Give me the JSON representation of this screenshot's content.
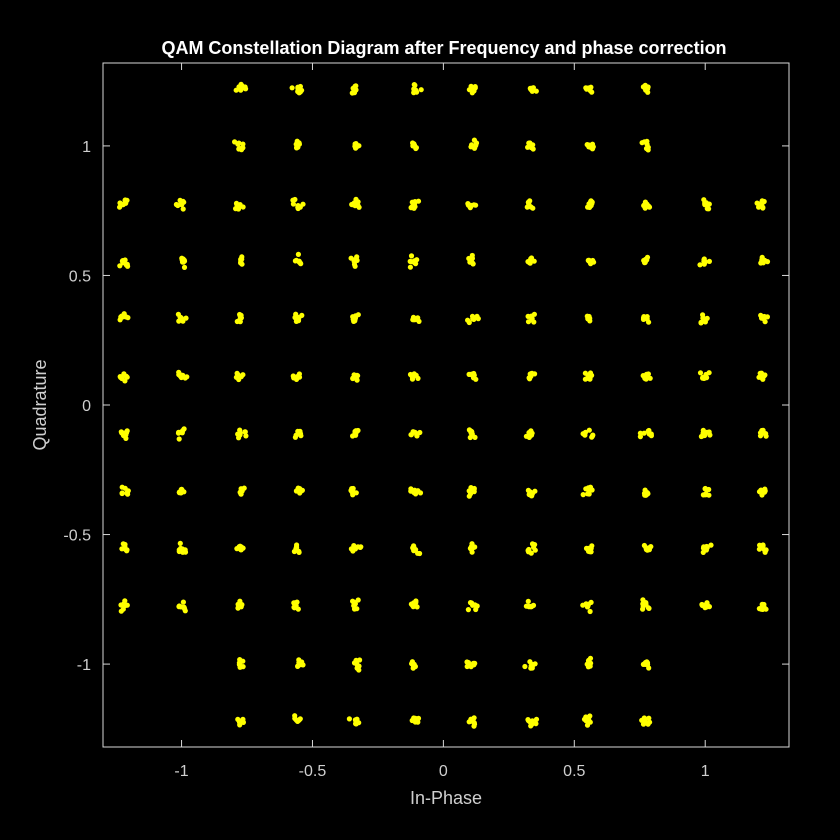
{
  "chart_data": {
    "type": "scatter",
    "title": "QAM Constellation Diagram after Frequency and phase correction",
    "xlabel": "In-Phase",
    "ylabel": "Quadrature",
    "xlim": [
      -1.3,
      1.32
    ],
    "ylim": [
      -1.32,
      1.32
    ],
    "xticks": [
      -1,
      -0.5,
      0,
      0.5,
      1
    ],
    "xtick_labels": [
      "-1",
      "-0.5",
      "0",
      "0.5",
      "1"
    ],
    "yticks": [
      -1,
      -0.5,
      0,
      0.5,
      1
    ],
    "ytick_labels": [
      "-1",
      "-0.5",
      "0",
      "0.5",
      "1"
    ],
    "grid": false,
    "legend": "none",
    "levels": [
      -1.22,
      -1.0,
      -0.775,
      -0.555,
      -0.335,
      -0.11,
      0.11,
      0.335,
      0.555,
      0.775,
      1.0,
      1.22
    ],
    "excluded_corners": [
      [
        -1.22,
        1.22
      ],
      [
        -1.0,
        1.22
      ],
      [
        1.0,
        1.22
      ],
      [
        1.22,
        1.22
      ],
      [
        -1.22,
        1.0
      ],
      [
        -1.0,
        1.0
      ],
      [
        1.0,
        1.0
      ],
      [
        1.22,
        1.0
      ],
      [
        -1.22,
        -1.0
      ],
      [
        -1.0,
        -1.0
      ],
      [
        1.0,
        -1.0
      ],
      [
        1.22,
        -1.0
      ],
      [
        -1.22,
        -1.22
      ],
      [
        -1.0,
        -1.22
      ],
      [
        1.0,
        -1.22
      ],
      [
        1.22,
        -1.22
      ]
    ],
    "constellation_points": 128,
    "samples_per_point": 8,
    "point_spread": 0.009
  },
  "colors": {
    "background": "#000000",
    "axes_box": "#d9d9d9",
    "tick_text": "#cfcfcf",
    "title_text": "#ffffff",
    "marker": "#ffff00"
  }
}
